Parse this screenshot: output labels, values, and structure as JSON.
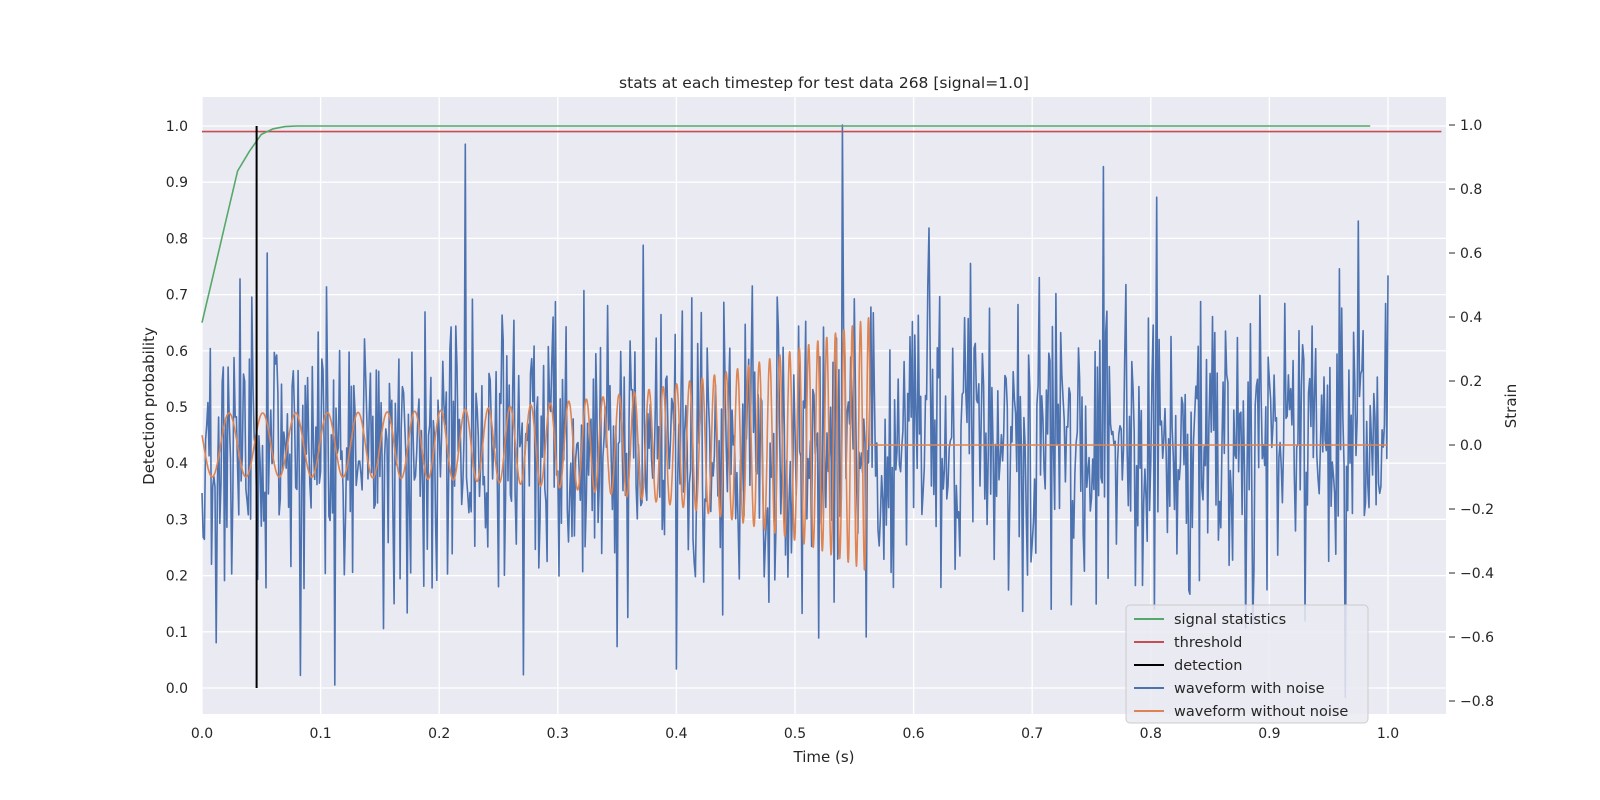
{
  "chart_data": {
    "type": "line",
    "title": "stats at each timestep for test data 268 [signal=1.0]",
    "xlabel": "Time (s)",
    "ylabel": "Detection probability",
    "ylabel_right": "Strain",
    "xlim": [
      0.0,
      1.05
    ],
    "ylim": [
      -0.048,
      1.048
    ],
    "ylim_right": [
      -0.855,
      1.085
    ],
    "grid": true,
    "legend_position": "lower right",
    "xticks": [
      "0.0",
      "0.1",
      "0.2",
      "0.3",
      "0.4",
      "0.5",
      "0.6",
      "0.7",
      "0.8",
      "0.9",
      "1.0"
    ],
    "yticks_left": [
      "0.0",
      "0.1",
      "0.2",
      "0.3",
      "0.4",
      "0.5",
      "0.6",
      "0.7",
      "0.8",
      "0.9",
      "1.0"
    ],
    "yticks_right": [
      "−0.8",
      "−0.6",
      "−0.4",
      "−0.2",
      "0.0",
      "0.2",
      "0.4",
      "0.6",
      "0.8",
      "1.0"
    ],
    "series": [
      {
        "name": "signal statistics",
        "axis": "left",
        "color": "#55a868",
        "x": [
          0.0,
          0.01,
          0.02,
          0.03,
          0.04,
          0.05,
          0.06,
          0.07,
          0.08,
          0.1,
          0.2,
          0.3,
          0.4,
          0.5,
          0.6,
          0.7,
          0.8,
          0.9,
          0.985
        ],
        "y": [
          0.65,
          0.74,
          0.83,
          0.92,
          0.955,
          0.985,
          0.995,
          0.999,
          1.0,
          1.0,
          1.0,
          1.0,
          1.0,
          1.0,
          1.0,
          1.0,
          1.0,
          1.0,
          1.0
        ]
      },
      {
        "name": "threshold",
        "axis": "left",
        "color": "#c44e52",
        "x": [
          0.0,
          1.045
        ],
        "y": [
          0.99,
          0.99
        ]
      },
      {
        "name": "detection",
        "axis": "left",
        "color": "#000000",
        "x": [
          0.046,
          0.046
        ],
        "y": [
          0.0,
          1.0
        ]
      },
      {
        "name": "waveform with noise",
        "axis": "right",
        "color": "#4c72b0",
        "x_range": [
          0.0,
          1.0
        ],
        "amplitude_std": 0.23,
        "peaks": [
          [
            0.0,
            -0.15
          ],
          [
            0.047,
            -0.42
          ],
          [
            0.055,
            0.6
          ],
          [
            0.083,
            -0.72
          ],
          [
            0.112,
            -0.75
          ],
          [
            0.222,
            0.94
          ],
          [
            0.35,
            -0.63
          ],
          [
            0.4,
            -0.7
          ],
          [
            0.54,
            1.0
          ],
          [
            0.56,
            -0.6
          ],
          [
            0.76,
            0.87
          ],
          [
            0.9,
            0.2
          ],
          [
            0.93,
            -0.55
          ],
          [
            0.975,
            0.7
          ],
          [
            1.0,
            0.53
          ]
        ]
      },
      {
        "name": "waveform without noise",
        "axis": "right",
        "color": "#dd8452",
        "x_range": [
          0.0,
          0.563
        ],
        "x_flat": [
          0.563,
          1.0
        ],
        "y_flat": 0.0,
        "frequency_start_hz": 35,
        "frequency_end_hz": 150,
        "amplitude_start": 0.1,
        "amplitude_end": 0.4
      }
    ]
  }
}
